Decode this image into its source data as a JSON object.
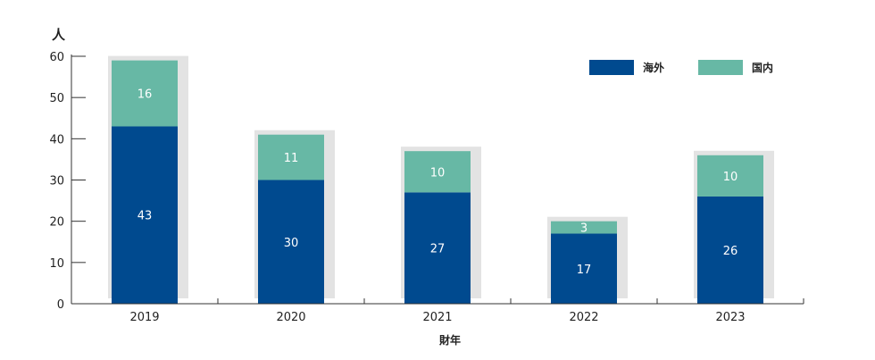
{
  "chart_data": {
    "type": "bar",
    "stacked": true,
    "categories": [
      "2019",
      "2020",
      "2021",
      "2022",
      "2023"
    ],
    "series": [
      {
        "name": "海外",
        "values": [
          43,
          30,
          27,
          17,
          26
        ],
        "color": "#004a8f"
      },
      {
        "name": "国内",
        "values": [
          16,
          11,
          10,
          3,
          10
        ],
        "color": "#67b8a5"
      }
    ],
    "shadow_color": "#e3e3e3",
    "title": "",
    "unit_label": "人",
    "xlabel": "財年",
    "ylabel": "",
    "ylim": [
      0,
      60
    ],
    "yticks": [
      0,
      10,
      20,
      30,
      40,
      50,
      60
    ],
    "grid": false,
    "legend_position": "top-right"
  }
}
